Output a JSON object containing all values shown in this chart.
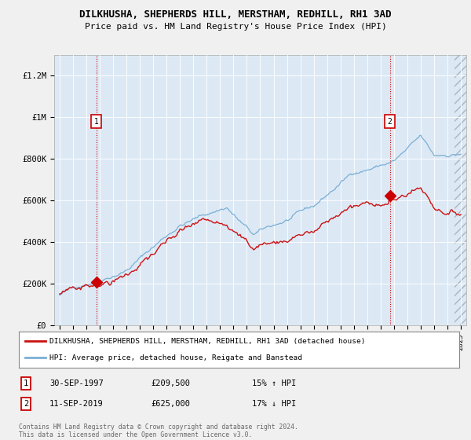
{
  "title": "DILKHUSHA, SHEPHERDS HILL, MERSTHAM, REDHILL, RH1 3AD",
  "subtitle": "Price paid vs. HM Land Registry's House Price Index (HPI)",
  "xlim": [
    1994.6,
    2025.4
  ],
  "ylim": [
    0,
    1300000
  ],
  "yticks": [
    0,
    200000,
    400000,
    600000,
    800000,
    1000000,
    1200000
  ],
  "ytick_labels": [
    "£0",
    "£200K",
    "£400K",
    "£600K",
    "£800K",
    "£1M",
    "£1.2M"
  ],
  "xticks": [
    1995,
    1996,
    1997,
    1998,
    1999,
    2000,
    2001,
    2002,
    2003,
    2004,
    2005,
    2006,
    2007,
    2008,
    2009,
    2010,
    2011,
    2012,
    2013,
    2014,
    2015,
    2016,
    2017,
    2018,
    2019,
    2020,
    2021,
    2022,
    2023,
    2024,
    2025
  ],
  "sale1_x": 1997.75,
  "sale1_y": 209500,
  "sale2_x": 2019.69,
  "sale2_y": 625000,
  "vline_color": "#cc0000",
  "hpi_color": "#7bafd4",
  "price_color": "#cc1111",
  "legend_entry1": "DILKHUSHA, SHEPHERDS HILL, MERSTHAM, REDHILL, RH1 3AD (detached house)",
  "legend_entry2": "HPI: Average price, detached house, Reigate and Banstead",
  "table_row1_date": "30-SEP-1997",
  "table_row1_price": "£209,500",
  "table_row1_hpi": "15% ↑ HPI",
  "table_row2_date": "11-SEP-2019",
  "table_row2_price": "£625,000",
  "table_row2_hpi": "17% ↓ HPI",
  "footnote": "Contains HM Land Registry data © Crown copyright and database right 2024.\nThis data is licensed under the Open Government Licence v3.0.",
  "bg_color": "#f0f0f0",
  "plot_bg_color": "#dce9f5",
  "hatch_start": 2024.5
}
